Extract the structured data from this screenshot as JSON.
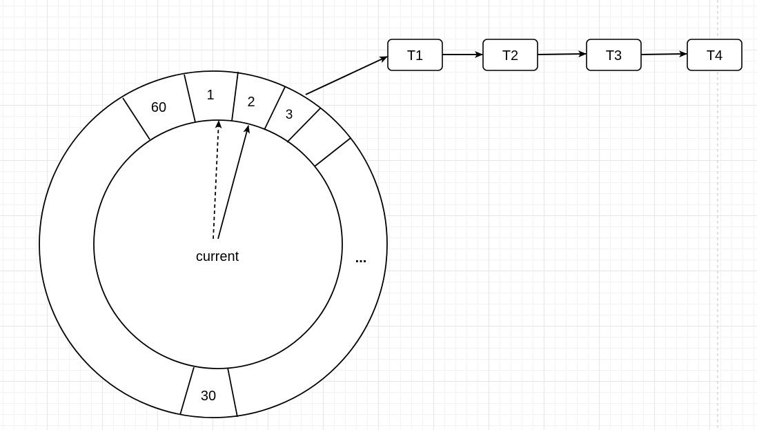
{
  "wheel": {
    "slots": {
      "slot_60": "60",
      "slot_1": "1",
      "slot_2": "2",
      "slot_3": "3",
      "slot_30": "30",
      "ellipsis": "..."
    },
    "pointer_label": "current"
  },
  "task_list": {
    "nodes": [
      "T1",
      "T2",
      "T3",
      "T4"
    ]
  },
  "colors": {
    "stroke": "#000000",
    "background": "#ffffff",
    "grid": "#e6e6e6"
  }
}
